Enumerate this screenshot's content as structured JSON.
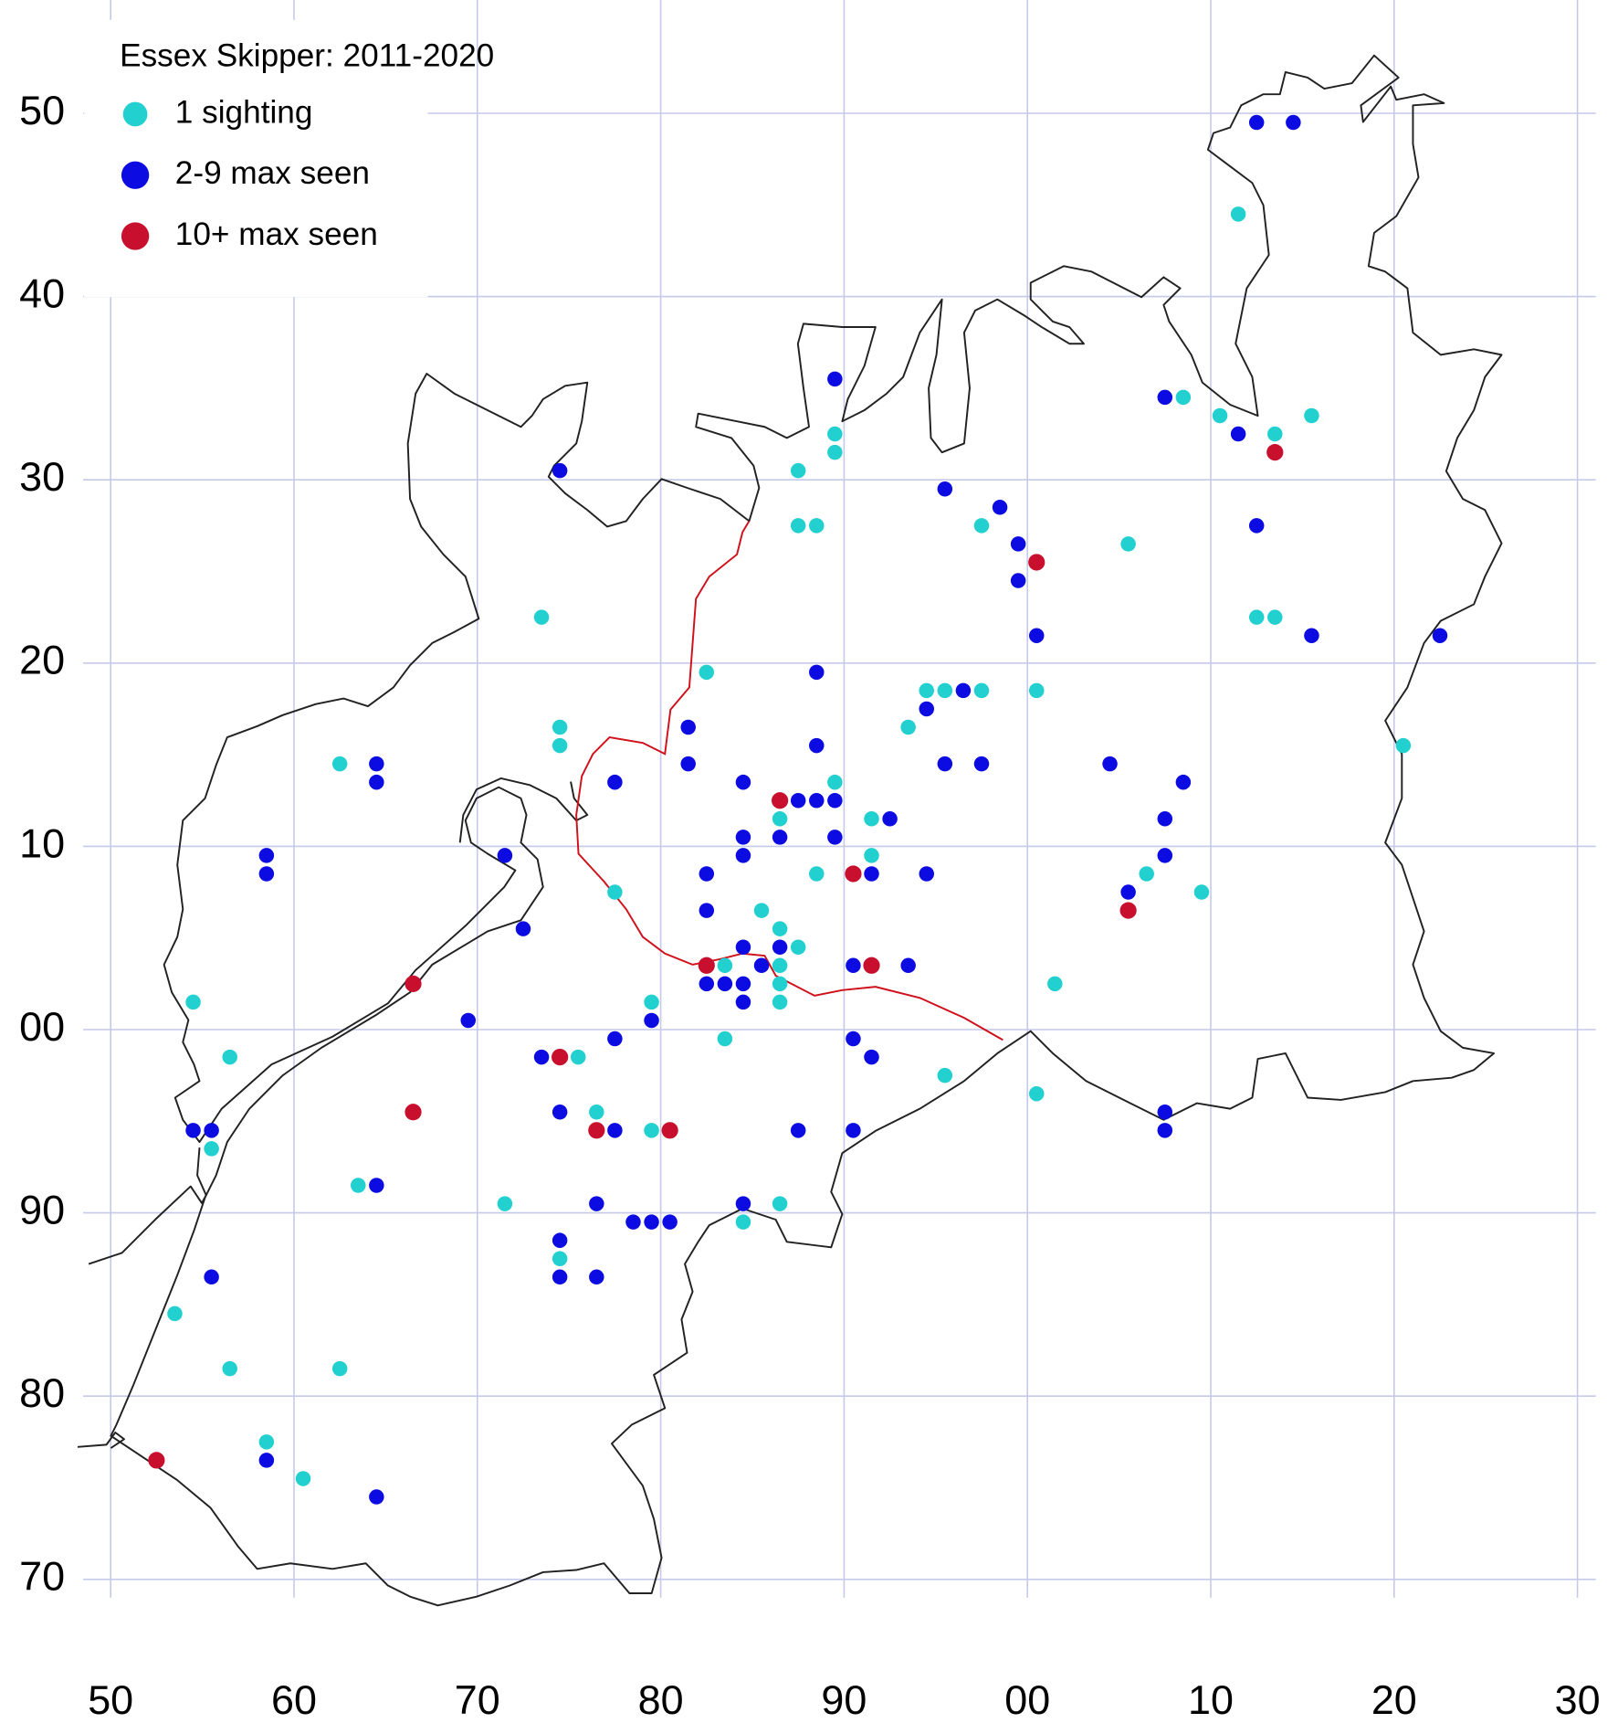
{
  "chart_data": {
    "type": "scatter",
    "legend_title": "Essex Skipper:  2011-2020",
    "legend": "upper left",
    "grid": true,
    "xlim": [
      48.5,
      131
    ],
    "ylim": [
      69,
      156
    ],
    "xticks": [
      50,
      60,
      70,
      80,
      90,
      {
        "value": 100,
        "label": "00"
      },
      {
        "value": 110,
        "label": "10"
      },
      {
        "value": 120,
        "label": "20"
      },
      {
        "value": 130,
        "label": "30"
      }
    ],
    "yticks": [
      70,
      80,
      90,
      {
        "value": 100,
        "label": "00"
      },
      {
        "value": 110,
        "label": "10"
      },
      {
        "value": 120,
        "label": "20"
      },
      {
        "value": 130,
        "label": "30"
      },
      {
        "value": 140,
        "label": "40"
      },
      {
        "value": 150,
        "label": "50"
      }
    ],
    "series": [
      {
        "name": "1 sighting",
        "color": "#22d0d0",
        "x": [
          111.5,
          108.5,
          110.5,
          113.5,
          115.5,
          89.5,
          89.5,
          87.5,
          87.5,
          88.5,
          97.5,
          105.5,
          73.5,
          112.5,
          113.5,
          82.5,
          94.5,
          95.5,
          97.5,
          100.5,
          93.5,
          74.5,
          74.5,
          120.5,
          62.5,
          89.5,
          86.5,
          91.5,
          91.5,
          88.5,
          106.5,
          77.5,
          109.5,
          85.5,
          86.5,
          87.5,
          83.5,
          86.5,
          86.5,
          101.5,
          79.5,
          86.5,
          54.5,
          83.5,
          56.5,
          75.5,
          95.5,
          100.5,
          76.5,
          79.5,
          55.5,
          63.5,
          71.5,
          86.5,
          84.5,
          74.5,
          53.5,
          56.5,
          62.5,
          58.5,
          60.5
        ],
        "y": [
          144.5,
          134.5,
          133.5,
          132.5,
          133.5,
          132.5,
          131.5,
          130.5,
          127.5,
          127.5,
          127.5,
          126.5,
          122.5,
          122.5,
          122.5,
          119.5,
          118.5,
          118.5,
          118.5,
          118.5,
          116.5,
          116.5,
          115.5,
          115.5,
          114.5,
          113.5,
          111.5,
          111.5,
          109.5,
          108.5,
          108.5,
          107.5,
          107.5,
          106.5,
          105.5,
          104.5,
          103.5,
          103.5,
          102.5,
          102.5,
          101.5,
          101.5,
          101.5,
          99.5,
          98.5,
          98.5,
          97.5,
          96.5,
          95.5,
          94.5,
          93.5,
          91.5,
          90.5,
          90.5,
          89.5,
          87.5,
          84.5,
          81.5,
          81.5,
          77.5,
          75.5
        ]
      },
      {
        "name": "2-9 max seen",
        "color": "#0c0ce2",
        "x": [
          112.5,
          114.5,
          89.5,
          107.5,
          111.5,
          74.5,
          95.5,
          98.5,
          99.5,
          99.5,
          112.5,
          100.5,
          115.5,
          122.5,
          88.5,
          96.5,
          94.5,
          81.5,
          88.5,
          64.5,
          81.5,
          95.5,
          97.5,
          104.5,
          64.5,
          77.5,
          84.5,
          108.5,
          87.5,
          88.5,
          89.5,
          92.5,
          107.5,
          84.5,
          86.5,
          89.5,
          58.5,
          71.5,
          84.5,
          107.5,
          58.5,
          82.5,
          91.5,
          94.5,
          105.5,
          82.5,
          72.5,
          84.5,
          86.5,
          85.5,
          90.5,
          93.5,
          82.5,
          83.5,
          84.5,
          84.5,
          69.5,
          79.5,
          77.5,
          90.5,
          73.5,
          91.5,
          74.5,
          107.5,
          54.5,
          55.5,
          77.5,
          87.5,
          90.5,
          107.5,
          64.5,
          76.5,
          84.5,
          78.5,
          79.5,
          80.5,
          74.5,
          55.5,
          74.5,
          76.5,
          58.5,
          64.5
        ],
        "y": [
          149.5,
          149.5,
          135.5,
          134.5,
          132.5,
          130.5,
          129.5,
          128.5,
          126.5,
          124.5,
          127.5,
          121.5,
          121.5,
          121.5,
          119.5,
          118.5,
          117.5,
          116.5,
          115.5,
          114.5,
          114.5,
          114.5,
          114.5,
          114.5,
          113.5,
          113.5,
          113.5,
          113.5,
          112.5,
          112.5,
          112.5,
          111.5,
          111.5,
          110.5,
          110.5,
          110.5,
          109.5,
          109.5,
          109.5,
          109.5,
          108.5,
          108.5,
          108.5,
          108.5,
          107.5,
          106.5,
          105.5,
          104.5,
          104.5,
          103.5,
          103.5,
          103.5,
          102.5,
          102.5,
          102.5,
          101.5,
          100.5,
          100.5,
          99.5,
          99.5,
          98.5,
          98.5,
          95.5,
          95.5,
          94.5,
          94.5,
          94.5,
          94.5,
          94.5,
          94.5,
          91.5,
          90.5,
          90.5,
          89.5,
          89.5,
          89.5,
          88.5,
          86.5,
          86.5,
          86.5,
          76.5,
          74.5
        ]
      },
      {
        "name": "10+ max seen",
        "color": "#c8102e",
        "x": [
          113.5,
          100.5,
          86.5,
          90.5,
          105.5,
          82.5,
          91.5,
          66.5,
          74.5,
          66.5,
          76.5,
          80.5,
          52.5
        ],
        "y": [
          131.5,
          125.5,
          112.5,
          108.5,
          106.5,
          103.5,
          103.5,
          102.5,
          98.5,
          95.5,
          94.5,
          94.5,
          76.5
        ]
      }
    ]
  }
}
